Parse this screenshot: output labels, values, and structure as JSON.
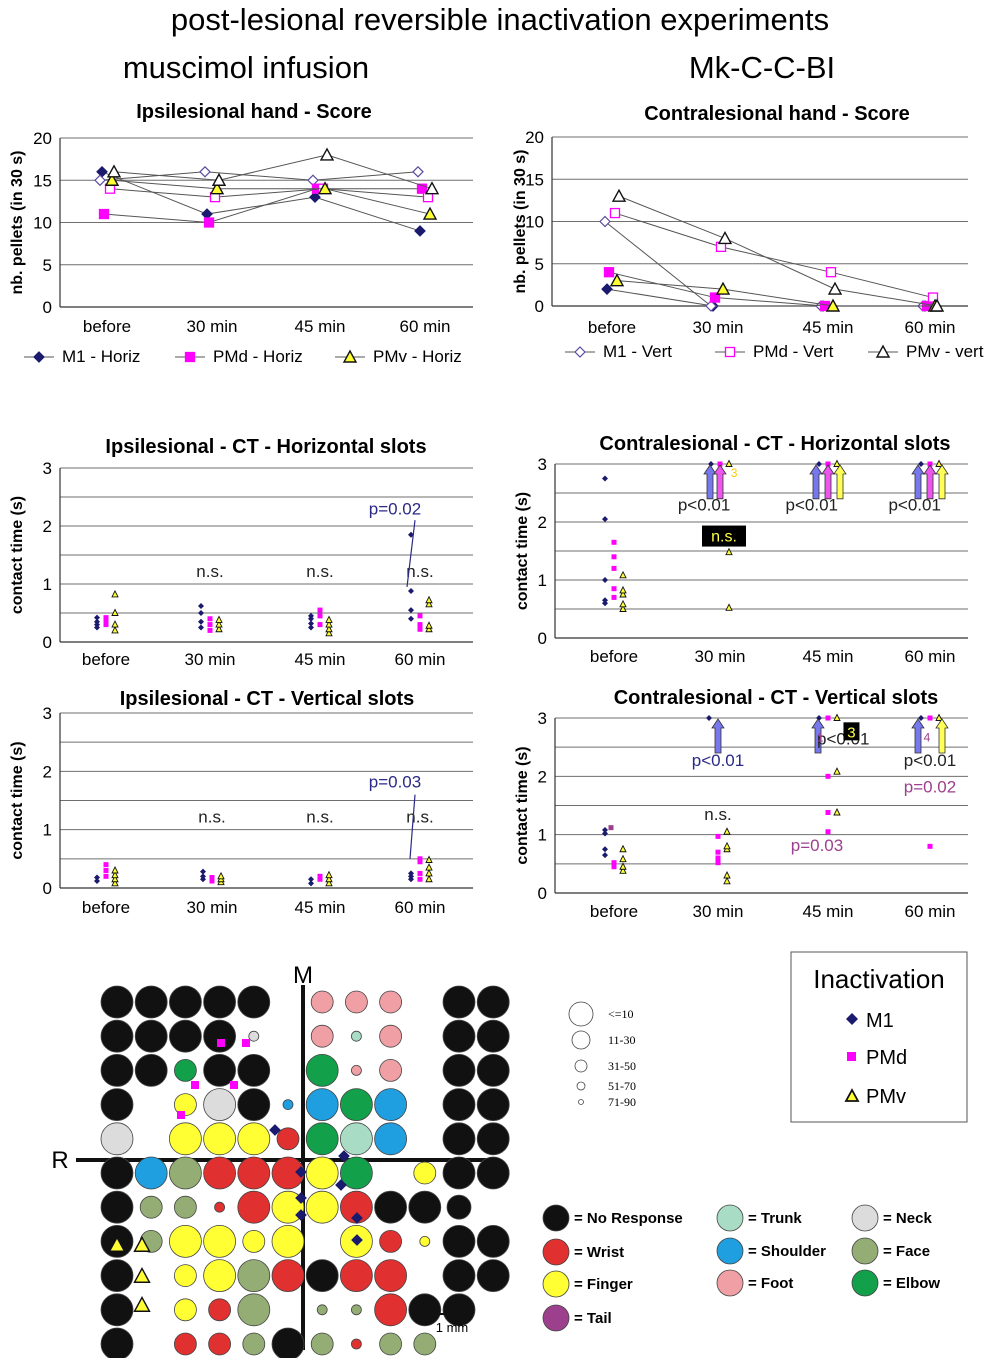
{
  "figure": {
    "main_title": "post-lesional reversible inactivation experiments",
    "left_subtitle": "muscimol infusion",
    "right_subtitle": "Mk-C-C-BI"
  },
  "colors": {
    "m1": "#1a1a6e",
    "pmd": "#ff00ff",
    "pmv_fill": "#ffff33",
    "arrow_blue": "#7777ee",
    "arrow_yellow": "#ffff55",
    "no_response": "#111111",
    "wrist": "#e03030",
    "finger": "#ffff33",
    "tail": "#9c3f8c",
    "trunk": "#a9dcc4",
    "shoulder": "#1f9ee0",
    "foot": "#f0a0a4",
    "neck": "#dcdcdc",
    "face": "#93ad74",
    "elbow": "#12a04a"
  },
  "chart_data": [
    {
      "id": "ipsi_score",
      "type": "line",
      "title": "Ipsilesional hand - Score",
      "ylabel": "nb. pellets (in 30 s)",
      "ylim": [
        0,
        20
      ],
      "yticks": [
        "0",
        "5",
        "10",
        "15",
        "20"
      ],
      "categories": [
        "before",
        "30 min",
        "45 min",
        "60 min"
      ],
      "legend": [
        "M1 - Horiz",
        "PMd - Horiz",
        "PMv - Horiz"
      ],
      "series": [
        {
          "name": "M1 a",
          "marker": "m1",
          "values": [
            16,
            11,
            13,
            9
          ]
        },
        {
          "name": "M1 b",
          "marker": "m1_open",
          "values": [
            15,
            16,
            15,
            16
          ]
        },
        {
          "name": "PMd a",
          "marker": "pmd",
          "values": [
            11,
            10,
            14,
            14
          ]
        },
        {
          "name": "PMd b",
          "marker": "pmd_open",
          "values": [
            14,
            13,
            14,
            13
          ]
        },
        {
          "name": "PMv a",
          "marker": "pmv",
          "values": [
            15,
            14,
            14,
            11
          ]
        },
        {
          "name": "PMv b",
          "marker": "pmv_open",
          "values": [
            16,
            15,
            18,
            14
          ]
        }
      ]
    },
    {
      "id": "contra_score",
      "type": "line",
      "title": "Contralesional hand - Score",
      "ylabel": "nb. pellets (in 30 s)",
      "ylim": [
        0,
        20
      ],
      "yticks": [
        "0",
        "5",
        "10",
        "15",
        "20"
      ],
      "categories": [
        "before",
        "30 min",
        "45 min",
        "60 min"
      ],
      "legend": [
        "M1 - Vert",
        "PMd - Vert",
        "PMv - vert"
      ],
      "series": [
        {
          "name": "M1 a",
          "marker": "m1",
          "values": [
            2,
            0,
            0,
            0
          ]
        },
        {
          "name": "M1 b",
          "marker": "m1_open",
          "values": [
            10,
            0,
            0,
            0
          ]
        },
        {
          "name": "PMd a",
          "marker": "pmd",
          "values": [
            4,
            1,
            0,
            0
          ]
        },
        {
          "name": "PMd b",
          "marker": "pmd_open",
          "values": [
            11,
            7,
            4,
            1
          ]
        },
        {
          "name": "PMv a",
          "marker": "pmv",
          "values": [
            3,
            2,
            0,
            0
          ]
        },
        {
          "name": "PMv b",
          "marker": "pmv_open",
          "values": [
            13,
            8,
            2,
            0
          ]
        }
      ]
    },
    {
      "id": "ipsi_ct_h",
      "type": "scatter",
      "title": "Ipsilesional - CT - Horizontal slots",
      "ylabel": "contact time (s)",
      "ylim": [
        0,
        3
      ],
      "yticks": [
        "0",
        "1",
        "2",
        "3"
      ],
      "categories": [
        "before",
        "30 min",
        "45 min",
        "60 min"
      ],
      "points": {
        "m1": [
          [
            0,
            0.25
          ],
          [
            0,
            0.3
          ],
          [
            0,
            0.35
          ],
          [
            0,
            0.42
          ],
          [
            1,
            0.25
          ],
          [
            1,
            0.35
          ],
          [
            1,
            0.5
          ],
          [
            1,
            0.62
          ],
          [
            2,
            0.25
          ],
          [
            2,
            0.32
          ],
          [
            2,
            0.4
          ],
          [
            2,
            0.45
          ],
          [
            3,
            0.4
          ],
          [
            3,
            0.55
          ],
          [
            3,
            0.88
          ],
          [
            3,
            1.85
          ]
        ],
        "pmd": [
          [
            0,
            0.3
          ],
          [
            0,
            0.35
          ],
          [
            0,
            0.42
          ],
          [
            1,
            0.2
          ],
          [
            1,
            0.3
          ],
          [
            1,
            0.4
          ],
          [
            2,
            0.3
          ],
          [
            2,
            0.45
          ],
          [
            2,
            0.55
          ],
          [
            3,
            0.22
          ],
          [
            3,
            0.3
          ],
          [
            3,
            0.45
          ]
        ],
        "pmv": [
          [
            0,
            0.2
          ],
          [
            0,
            0.3
          ],
          [
            0,
            0.5
          ],
          [
            0,
            0.82
          ],
          [
            1,
            0.22
          ],
          [
            1,
            0.3
          ],
          [
            1,
            0.38
          ],
          [
            2,
            0.15
          ],
          [
            2,
            0.22
          ],
          [
            2,
            0.3
          ],
          [
            2,
            0.38
          ],
          [
            3,
            0.22
          ],
          [
            3,
            0.28
          ],
          [
            3,
            0.65
          ],
          [
            3,
            0.72
          ]
        ]
      },
      "annotations": [
        {
          "text": "n.s.",
          "cat": 1,
          "y": 1.12,
          "cls": "ns"
        },
        {
          "text": "n.s.",
          "cat": 2,
          "y": 1.12,
          "cls": "ns"
        },
        {
          "text": "n.s.",
          "cat": 3,
          "y": 1.12,
          "cls": "ns"
        },
        {
          "text": "p=0.02",
          "cat": 2.75,
          "y": 2.2,
          "cls": "pblue"
        }
      ]
    },
    {
      "id": "contra_ct_h",
      "type": "scatter",
      "title": "Contralesional - CT - Horizontal slots",
      "ylabel": "contact time (s)",
      "ylim": [
        0,
        3
      ],
      "yticks": [
        "0",
        "1",
        "2",
        "3"
      ],
      "categories": [
        "before",
        "30 min",
        "45 min",
        "60 min"
      ],
      "points": {
        "m1": [
          [
            0,
            0.6
          ],
          [
            0,
            0.65
          ],
          [
            0,
            1.0
          ],
          [
            0,
            2.05
          ],
          [
            0,
            2.75
          ],
          [
            1,
            3
          ],
          [
            2,
            3
          ],
          [
            3,
            3
          ]
        ],
        "pmd": [
          [
            0,
            0.7
          ],
          [
            0,
            0.85
          ],
          [
            0,
            1.2
          ],
          [
            0,
            1.4
          ],
          [
            0,
            1.65
          ],
          [
            1,
            3
          ],
          [
            2,
            3
          ],
          [
            3,
            3
          ]
        ],
        "pmv": [
          [
            0,
            0.5
          ],
          [
            0,
            0.58
          ],
          [
            0,
            0.75
          ],
          [
            0,
            0.82
          ],
          [
            0,
            1.08
          ],
          [
            1,
            0.52
          ],
          [
            1,
            1.48
          ],
          [
            1,
            3
          ],
          [
            2,
            3
          ],
          [
            3,
            3
          ]
        ]
      },
      "annotations": [
        {
          "text": "p<0.01",
          "cat": 0.85,
          "y": 2.2,
          "cls": "pblack"
        },
        {
          "text": "p<0.01",
          "cat": 1.85,
          "y": 2.2,
          "cls": "pblack"
        },
        {
          "text": "p<0.01",
          "cat": 2.85,
          "y": 2.2,
          "cls": "pblack"
        },
        {
          "text": "n.s.",
          "cat": 1.0,
          "y": 1.68,
          "cls": "nsbox"
        },
        {
          "text": "3",
          "cat": 1.13,
          "y": 2.78,
          "cls": "ylabel"
        }
      ],
      "arrows": [
        {
          "cat": 1,
          "offset": -10,
          "color": "blue"
        },
        {
          "cat": 1,
          "offset": 0,
          "color": "pink"
        },
        {
          "cat": 2,
          "offset": -12,
          "color": "blue"
        },
        {
          "cat": 2,
          "offset": 0,
          "color": "pink"
        },
        {
          "cat": 2,
          "offset": 12,
          "color": "yellow"
        },
        {
          "cat": 3,
          "offset": -12,
          "color": "blue"
        },
        {
          "cat": 3,
          "offset": 0,
          "color": "pink"
        },
        {
          "cat": 3,
          "offset": 12,
          "color": "yellow"
        }
      ]
    },
    {
      "id": "ipsi_ct_v",
      "type": "scatter",
      "title": "Ipsilesional - CT - Vertical slots",
      "ylabel": "contact time (s)",
      "ylim": [
        0,
        3
      ],
      "yticks": [
        "0",
        "1",
        "2",
        "3"
      ],
      "categories": [
        "before",
        "30 min",
        "45 min",
        "60 min"
      ],
      "points": {
        "m1": [
          [
            0,
            0.12
          ],
          [
            0,
            0.18
          ],
          [
            1,
            0.15
          ],
          [
            1,
            0.2
          ],
          [
            1,
            0.28
          ],
          [
            2,
            0.08
          ],
          [
            2,
            0.15
          ],
          [
            3,
            0.15
          ],
          [
            3,
            0.2
          ],
          [
            3,
            0.25
          ]
        ],
        "pmd": [
          [
            0,
            0.2
          ],
          [
            0,
            0.3
          ],
          [
            0,
            0.4
          ],
          [
            1,
            0.12
          ],
          [
            1,
            0.18
          ],
          [
            2,
            0.15
          ],
          [
            2,
            0.2
          ],
          [
            3,
            0.15
          ],
          [
            3,
            0.25
          ],
          [
            3,
            0.45
          ],
          [
            3,
            0.5
          ]
        ],
        "pmv": [
          [
            0,
            0.08
          ],
          [
            0,
            0.15
          ],
          [
            0,
            0.22
          ],
          [
            0,
            0.3
          ],
          [
            1,
            0.1
          ],
          [
            1,
            0.15
          ],
          [
            1,
            0.2
          ],
          [
            2,
            0.08
          ],
          [
            2,
            0.15
          ],
          [
            2,
            0.22
          ],
          [
            3,
            0.15
          ],
          [
            3,
            0.25
          ],
          [
            3,
            0.35
          ],
          [
            3,
            0.48
          ]
        ]
      },
      "annotations": [
        {
          "text": "n.s.",
          "cat": 1,
          "y": 1.12,
          "cls": "ns"
        },
        {
          "text": "n.s.",
          "cat": 2,
          "y": 1.12,
          "cls": "ns"
        },
        {
          "text": "n.s.",
          "cat": 3,
          "y": 1.12,
          "cls": "ns"
        },
        {
          "text": "p=0.03",
          "cat": 2.75,
          "y": 1.72,
          "cls": "pblue"
        }
      ]
    },
    {
      "id": "contra_ct_v",
      "type": "scatter",
      "title": "Contralesional - CT - Vertical slots",
      "ylabel": "contact time (s)",
      "ylim": [
        0,
        3
      ],
      "yticks": [
        "0",
        "1",
        "2",
        "3"
      ],
      "categories": [
        "before",
        "30 min",
        "45 min",
        "60 min"
      ],
      "points": {
        "m1": [
          [
            0,
            0.65
          ],
          [
            0,
            0.75
          ],
          [
            0,
            1.02
          ],
          [
            0,
            1.08
          ],
          [
            1,
            3
          ],
          [
            2,
            3
          ],
          [
            3,
            3
          ]
        ],
        "pmd": [
          [
            0,
            0.45
          ],
          [
            0,
            0.52
          ],
          [
            1,
            0.52
          ],
          [
            1,
            0.6
          ],
          [
            1,
            0.7
          ],
          [
            1,
            0.97
          ],
          [
            2,
            1.05
          ],
          [
            2,
            1.38
          ],
          [
            2,
            2.0
          ],
          [
            2,
            3
          ],
          [
            3,
            0.8
          ],
          [
            3,
            3
          ]
        ],
        "pmv": [
          [
            0,
            0.38
          ],
          [
            0,
            0.45
          ],
          [
            0,
            0.58
          ],
          [
            0,
            0.75
          ],
          [
            1,
            0.2
          ],
          [
            1,
            0.3
          ],
          [
            1,
            0.75
          ],
          [
            1,
            0.8
          ],
          [
            1,
            1.05
          ],
          [
            2,
            1.38
          ],
          [
            2,
            2.08
          ],
          [
            2,
            3
          ],
          [
            3,
            3
          ]
        ],
        "tail": [
          [
            0,
            1.12
          ]
        ]
      },
      "annotations": [
        {
          "text": "p<0.01",
          "cat": 1,
          "y": 2.18,
          "cls": "pblue"
        },
        {
          "text": "p<0.01",
          "cat": 2.15,
          "y": 2.55,
          "cls": "pblack"
        },
        {
          "text": "p<0.01",
          "cat": 3,
          "y": 2.18,
          "cls": "pblack"
        },
        {
          "text": "p=0.02",
          "cat": 3,
          "y": 1.72,
          "cls": "ppurple"
        },
        {
          "text": "p=0.03",
          "cat": 1.9,
          "y": 0.72,
          "cls": "ppurple"
        },
        {
          "text": "n.s.",
          "cat": 1,
          "y": 1.25,
          "cls": "ns"
        },
        {
          "text": "1",
          "cat": 1.93,
          "y": 2.6,
          "cls": "tpurple"
        },
        {
          "text": "4",
          "cat": 2.97,
          "y": 2.6,
          "cls": "tpurple"
        },
        {
          "text": "3",
          "cat": 2.23,
          "y": 2.72,
          "cls": "box3"
        }
      ],
      "arrows": [
        {
          "cat": 1,
          "offset": 0,
          "color": "blue"
        },
        {
          "cat": 2,
          "offset": -10,
          "color": "blue"
        },
        {
          "cat": 3,
          "offset": -12,
          "color": "blue"
        },
        {
          "cat": 3,
          "offset": 12,
          "color": "yellow"
        }
      ]
    }
  ],
  "map": {
    "top_label": "M",
    "left_label": "R",
    "scale_label": "1 mm",
    "size_legend": [
      "<=10",
      "11-30",
      "31-50",
      "51-70",
      "71-90"
    ],
    "grid": [
      "bbbbb.ppp.bb",
      "bbbbl.ptp.bb",
      "bbebb.gpp.bb",
      "b.ywbssgs.bb",
      "n.yyyrgts.bb",
      "bsfrrryg.ybb",
      "bffrryyrbbb.",
      "bfyyyy.yrybb",
      "b.yyfrbrr.bb",
      "b.yrf.ffrbb.",
      "b.rrfbfrff..",
      ".rffffbf.f.."
    ],
    "sizes": [
      "LLLLL.MMM.LL",
      "LLLLS.MSM.LL",
      "LLMLL.LSM.LL",
      "L.MLLSLLL.LL",
      "L.LLLMLLL.LL",
      "LLLLLLLLLMLL",
      "LMMSLLLLLL L",
      "LMLLMLSLMSLL",
      "L.MLLLLLL.LL",
      "L.MMLLSSLLL.",
      "L.MMMLMSMM..",
      ".LMMMLLM.S.."
    ]
  },
  "inactivation_legend": {
    "title": "Inactivation",
    "items": [
      "M1",
      "PMd",
      "PMv"
    ]
  },
  "color_legend": [
    {
      "label": "= No Response",
      "key": "no_response"
    },
    {
      "label": "= Trunk",
      "key": "trunk"
    },
    {
      "label": "= Neck",
      "key": "neck"
    },
    {
      "label": "= Wrist",
      "key": "wrist"
    },
    {
      "label": "= Shoulder",
      "key": "shoulder"
    },
    {
      "label": "= Face",
      "key": "face"
    },
    {
      "label": "= Finger",
      "key": "finger"
    },
    {
      "label": "= Foot",
      "key": "foot"
    },
    {
      "label": "= Elbow",
      "key": "elbow"
    },
    {
      "label": "= Tail",
      "key": "tail"
    }
  ]
}
